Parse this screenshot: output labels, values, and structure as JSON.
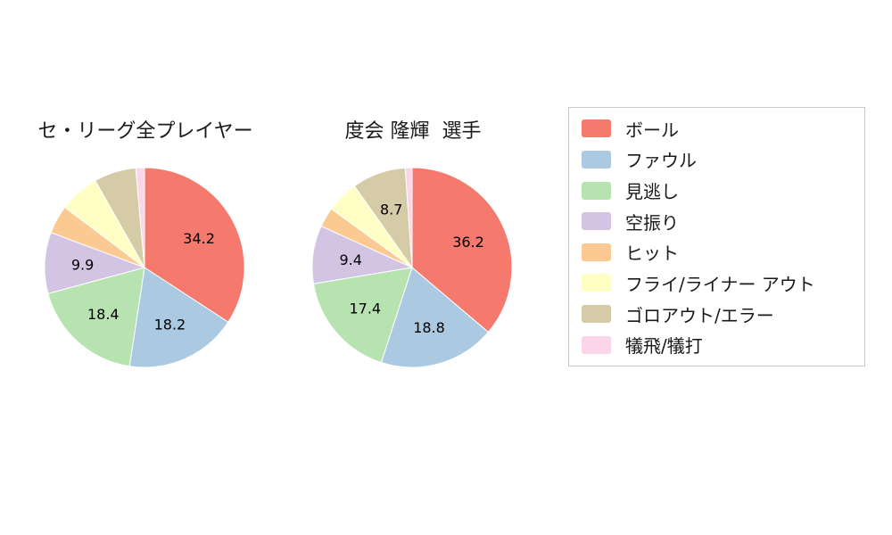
{
  "chart_data": [
    {
      "type": "pie",
      "title": "セ・リーグ全プレイヤー",
      "labels": [
        "ボール",
        "ファウル",
        "見逃し",
        "空振り",
        "ヒット",
        "フライ/ライナー アウト",
        "ゴロアウト/エラー",
        "犠飛/犠打"
      ],
      "values": [
        34.2,
        18.2,
        18.4,
        9.9,
        4.6,
        6.5,
        6.8,
        1.4
      ],
      "unit": "percent",
      "start_angle": "top",
      "direction": "clockwise",
      "data_label_min_value": 8,
      "shown_data_labels": [
        "34.2",
        "18.2",
        "18.4",
        "9.9"
      ],
      "legend_position": "right"
    },
    {
      "type": "pie",
      "title": "度会 隆輝  選手",
      "labels": [
        "ボール",
        "ファウル",
        "見逃し",
        "空振り",
        "ヒット",
        "フライ/ライナー アウト",
        "ゴロアウト/エラー",
        "犠飛/犠打"
      ],
      "values": [
        36.2,
        18.8,
        17.4,
        9.4,
        3.2,
        5.2,
        8.7,
        1.1
      ],
      "unit": "percent",
      "start_angle": "top",
      "direction": "clockwise",
      "data_label_min_value": 8,
      "shown_data_labels": [
        "36.2",
        "18.8",
        "17.4",
        "9.4",
        "8.7"
      ],
      "legend_position": "right"
    }
  ],
  "legend": {
    "items": [
      {
        "id": "ball",
        "label": "ボール",
        "color": "#f5796d"
      },
      {
        "id": "foul",
        "label": "ファウル",
        "color": "#abc9e0"
      },
      {
        "id": "called-strike",
        "label": "見逃し",
        "color": "#b7e3b1"
      },
      {
        "id": "swinging-strike",
        "label": "空振り",
        "color": "#d4c4e3"
      },
      {
        "id": "hit",
        "label": "ヒット",
        "color": "#fbca92"
      },
      {
        "id": "fly-liner-out",
        "label": "フライ/ライナー アウト",
        "color": "#ffffc5"
      },
      {
        "id": "ground-out-error",
        "label": "ゴロアウト/エラー",
        "color": "#d5cba6"
      },
      {
        "id": "sacrifice",
        "label": "犠飛/犠打",
        "color": "#fbd6ea"
      }
    ]
  }
}
